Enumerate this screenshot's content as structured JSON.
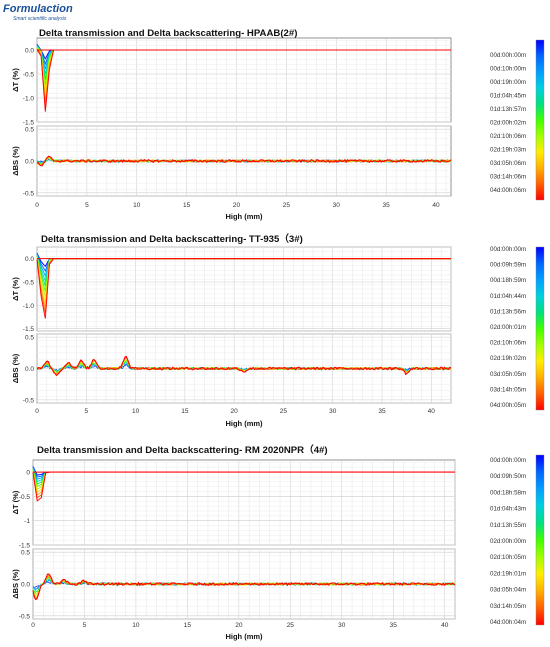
{
  "brand": {
    "name": "Formulaction",
    "tagline": "Smart scientific analysis"
  },
  "chart_data": [
    {
      "type": "line",
      "title": "Delta transmission and Delta backscattering- HPAAB(2#)",
      "xlabel": "High (mm)",
      "x_ticks": [
        0,
        5,
        10,
        15,
        20,
        25,
        30,
        35,
        40
      ],
      "xlim": [
        0,
        41.5
      ],
      "panels": [
        {
          "ylabel": "ΔT (%)",
          "ylim": [
            -1.5,
            0.25
          ],
          "y_ticks": [
            0,
            -0.5,
            -1,
            -1.5
          ],
          "y_tick_labels": [
            "0.0",
            "-0.5",
            "-1.0",
            "-1.5"
          ]
        },
        {
          "ylabel": "ΔBS (%)",
          "ylim": [
            -0.55,
            0.55
          ],
          "y_ticks": [
            0.5,
            0,
            -0.5
          ],
          "y_tick_labels": [
            "0.5",
            "0.0",
            "-0.5"
          ]
        }
      ],
      "legend_times": [
        "00d:00h:00m",
        "00d:10h:00m",
        "00d:19h:00m",
        "01d:04h:45m",
        "01d:13h:57m",
        "02d:00h:02m",
        "02d:10h:06m",
        "02d:19h:03m",
        "03d:05h:06m",
        "03d:14h:06m",
        "04d:00h:06m"
      ],
      "dt_peak": {
        "position_mm": 0.9,
        "min_value": -1.35,
        "width_mm": 0.8
      },
      "dbs_features": [
        {
          "position_mm": 0.4,
          "value": -0.08
        },
        {
          "position_mm": 1.2,
          "value": 0.06
        }
      ]
    },
    {
      "type": "line",
      "title": "Delta transmission and Delta backscattering- TT-935（3#)",
      "xlabel": "High (mm)",
      "x_ticks": [
        0,
        5,
        10,
        15,
        20,
        25,
        30,
        35,
        40
      ],
      "xlim": [
        0,
        42
      ],
      "panels": [
        {
          "ylabel": "ΔT (%)",
          "ylim": [
            -1.55,
            0.25
          ],
          "y_ticks": [
            0,
            -0.5,
            -1,
            -1.5
          ],
          "y_tick_labels": [
            "0.0",
            "-0.5",
            "-1.0",
            "-1.5"
          ]
        },
        {
          "ylabel": "ΔBS (%)",
          "ylim": [
            -0.55,
            0.55
          ],
          "y_ticks": [
            0.5,
            0,
            -0.5
          ],
          "y_tick_labels": [
            "0.5",
            "0.0",
            "-0.5"
          ]
        }
      ],
      "legend_times": [
        "00d:00h:00m",
        "00d:09h:59m",
        "00d:18h:59m",
        "01d:04h:44m",
        "01d:13h:56m",
        "02d:00h:01m",
        "02d:10h:06m",
        "02d:19h:02m",
        "03d:05h:05m",
        "03d:14h:05m",
        "04d:00h:05m"
      ],
      "dt_peak": {
        "position_mm": 0.7,
        "min_value": -1.5,
        "width_mm": 0.9
      },
      "dbs_features": [
        {
          "position_mm": 1.0,
          "value": 0.12
        },
        {
          "position_mm": 2.0,
          "value": -0.1
        },
        {
          "position_mm": 3.2,
          "value": 0.1
        },
        {
          "position_mm": 4.5,
          "value": 0.12
        },
        {
          "position_mm": 5.8,
          "value": 0.15
        },
        {
          "position_mm": 9.0,
          "value": 0.2
        },
        {
          "position_mm": 21.0,
          "value": -0.05
        },
        {
          "position_mm": 37.5,
          "value": -0.08
        }
      ]
    },
    {
      "type": "line",
      "title": "Delta transmission and Delta backscattering- RM 2020NPR（4#)",
      "xlabel": "High (mm)",
      "x_ticks": [
        0,
        5,
        10,
        15,
        20,
        25,
        30,
        35,
        40
      ],
      "xlim": [
        0,
        41
      ],
      "panels": [
        {
          "ylabel": "ΔT (%)",
          "ylim": [
            -1.5,
            0.25
          ],
          "y_ticks": [
            0,
            -0.5,
            -1,
            -1.5
          ],
          "y_tick_labels": [
            "0",
            "-0.5",
            "-1",
            "-1.5"
          ]
        },
        {
          "ylabel": "ΔBS (%)",
          "ylim": [
            -0.55,
            0.55
          ],
          "y_ticks": [
            0.5,
            0,
            -0.5
          ],
          "y_tick_labels": [
            "0.5",
            "0.0",
            "-0.5"
          ]
        }
      ],
      "legend_times": [
        "00d:00h:00m",
        "00d:09h:50m",
        "00d:18h:58m",
        "01d:04h:43m",
        "01d:13h:55m",
        "02d:00h:00m",
        "02d:10h:05m",
        "02d:19h:01m",
        "03d:05h:04m",
        "03d:14h:05m",
        "04d:00h:04m"
      ],
      "dt_peak": {
        "position_mm": 0.6,
        "min_value": -0.85,
        "width_mm": 0.8
      },
      "dbs_features": [
        {
          "position_mm": 0.3,
          "value": -0.25
        },
        {
          "position_mm": 1.5,
          "value": 0.15
        },
        {
          "position_mm": 3.0,
          "value": 0.06
        },
        {
          "position_mm": 5.0,
          "value": 0.05
        }
      ]
    }
  ],
  "colorscale": [
    "#0000ff",
    "#0066ff",
    "#00a0ff",
    "#00d0e0",
    "#00e080",
    "#40ff00",
    "#a0ff00",
    "#ffee00",
    "#ffb000",
    "#ff6000",
    "#ff0000"
  ]
}
